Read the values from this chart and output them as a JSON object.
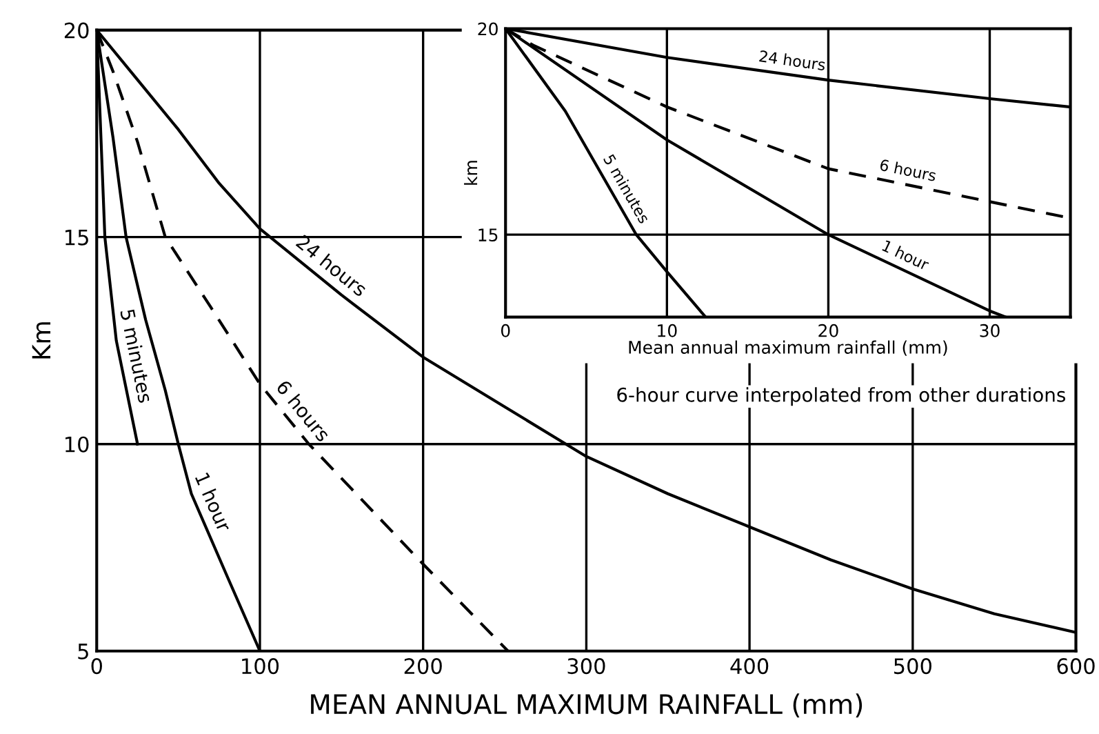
{
  "chart_data": [
    {
      "type": "line",
      "xlabel": "MEAN ANNUAL MAXIMUM RAINFALL (mm)",
      "ylabel": "Km",
      "xlim": [
        0,
        600
      ],
      "ylim": [
        5,
        20
      ],
      "xticks": [
        0,
        100,
        200,
        300,
        400,
        500,
        600
      ],
      "yticks": [
        5,
        10,
        15,
        20
      ],
      "grid": true,
      "legend": false,
      "marker": "none",
      "annotations": [
        "6-hour curve interpolated from other durations"
      ],
      "series": [
        {
          "name": "5 minutes",
          "color": "#000000",
          "line_style": "solid",
          "x": [
            0,
            5,
            12,
            25
          ],
          "values": [
            20,
            15,
            12.5,
            10
          ]
        },
        {
          "name": "1 hour",
          "color": "#000000",
          "line_style": "solid",
          "x": [
            0,
            10,
            18,
            30,
            42,
            50,
            58,
            80,
            100
          ],
          "values": [
            20,
            17.4,
            15,
            13,
            11.3,
            10,
            8.8,
            6.8,
            5
          ]
        },
        {
          "name": "6 hours",
          "color": "#000000",
          "line_style": "dashed",
          "x": [
            0,
            10,
            25,
            42,
            70,
            100,
            130,
            200,
            252
          ],
          "values": [
            20,
            19,
            17.3,
            15,
            13.3,
            11.45,
            10,
            7.1,
            5
          ]
        },
        {
          "name": "24 hours",
          "color": "#000000",
          "line_style": "solid",
          "x": [
            0,
            25,
            50,
            75,
            100,
            150,
            200,
            250,
            300,
            350,
            400,
            450,
            500,
            550,
            600
          ],
          "values": [
            20,
            18.8,
            17.6,
            16.3,
            15.2,
            13.6,
            12.1,
            10.9,
            9.7,
            8.8,
            8.0,
            7.2,
            6.5,
            5.9,
            5.45
          ]
        }
      ]
    },
    {
      "type": "line",
      "xlabel": "Mean annual maximum rainfall (mm)",
      "ylabel": "km",
      "xlim": [
        0,
        35
      ],
      "ylim": [
        13,
        20
      ],
      "xticks": [
        0,
        10,
        20,
        30
      ],
      "yticks": [
        15,
        20
      ],
      "grid": true,
      "legend": false,
      "marker": "none",
      "series": [
        {
          "name": "5 minutes",
          "color": "#000000",
          "line_style": "solid",
          "x": [
            0,
            3.7,
            8.1,
            10,
            12.4
          ],
          "values": [
            20,
            18,
            15,
            14.1,
            13
          ]
        },
        {
          "name": "1 hour",
          "color": "#000000",
          "line_style": "solid",
          "x": [
            0,
            10,
            20,
            30,
            31
          ],
          "values": [
            20,
            17.3,
            15,
            13.15,
            13
          ]
        },
        {
          "name": "6 hours",
          "color": "#000000",
          "line_style": "dashed",
          "x": [
            0,
            1.7,
            10,
            20,
            30,
            35
          ],
          "values": [
            20,
            19.6,
            18.1,
            16.6,
            15.8,
            15.4
          ]
        },
        {
          "name": "24 hours",
          "color": "#000000",
          "line_style": "solid",
          "x": [
            0,
            10,
            20,
            30,
            35
          ],
          "values": [
            20,
            19.3,
            18.75,
            18.3,
            18.1
          ]
        }
      ]
    }
  ]
}
